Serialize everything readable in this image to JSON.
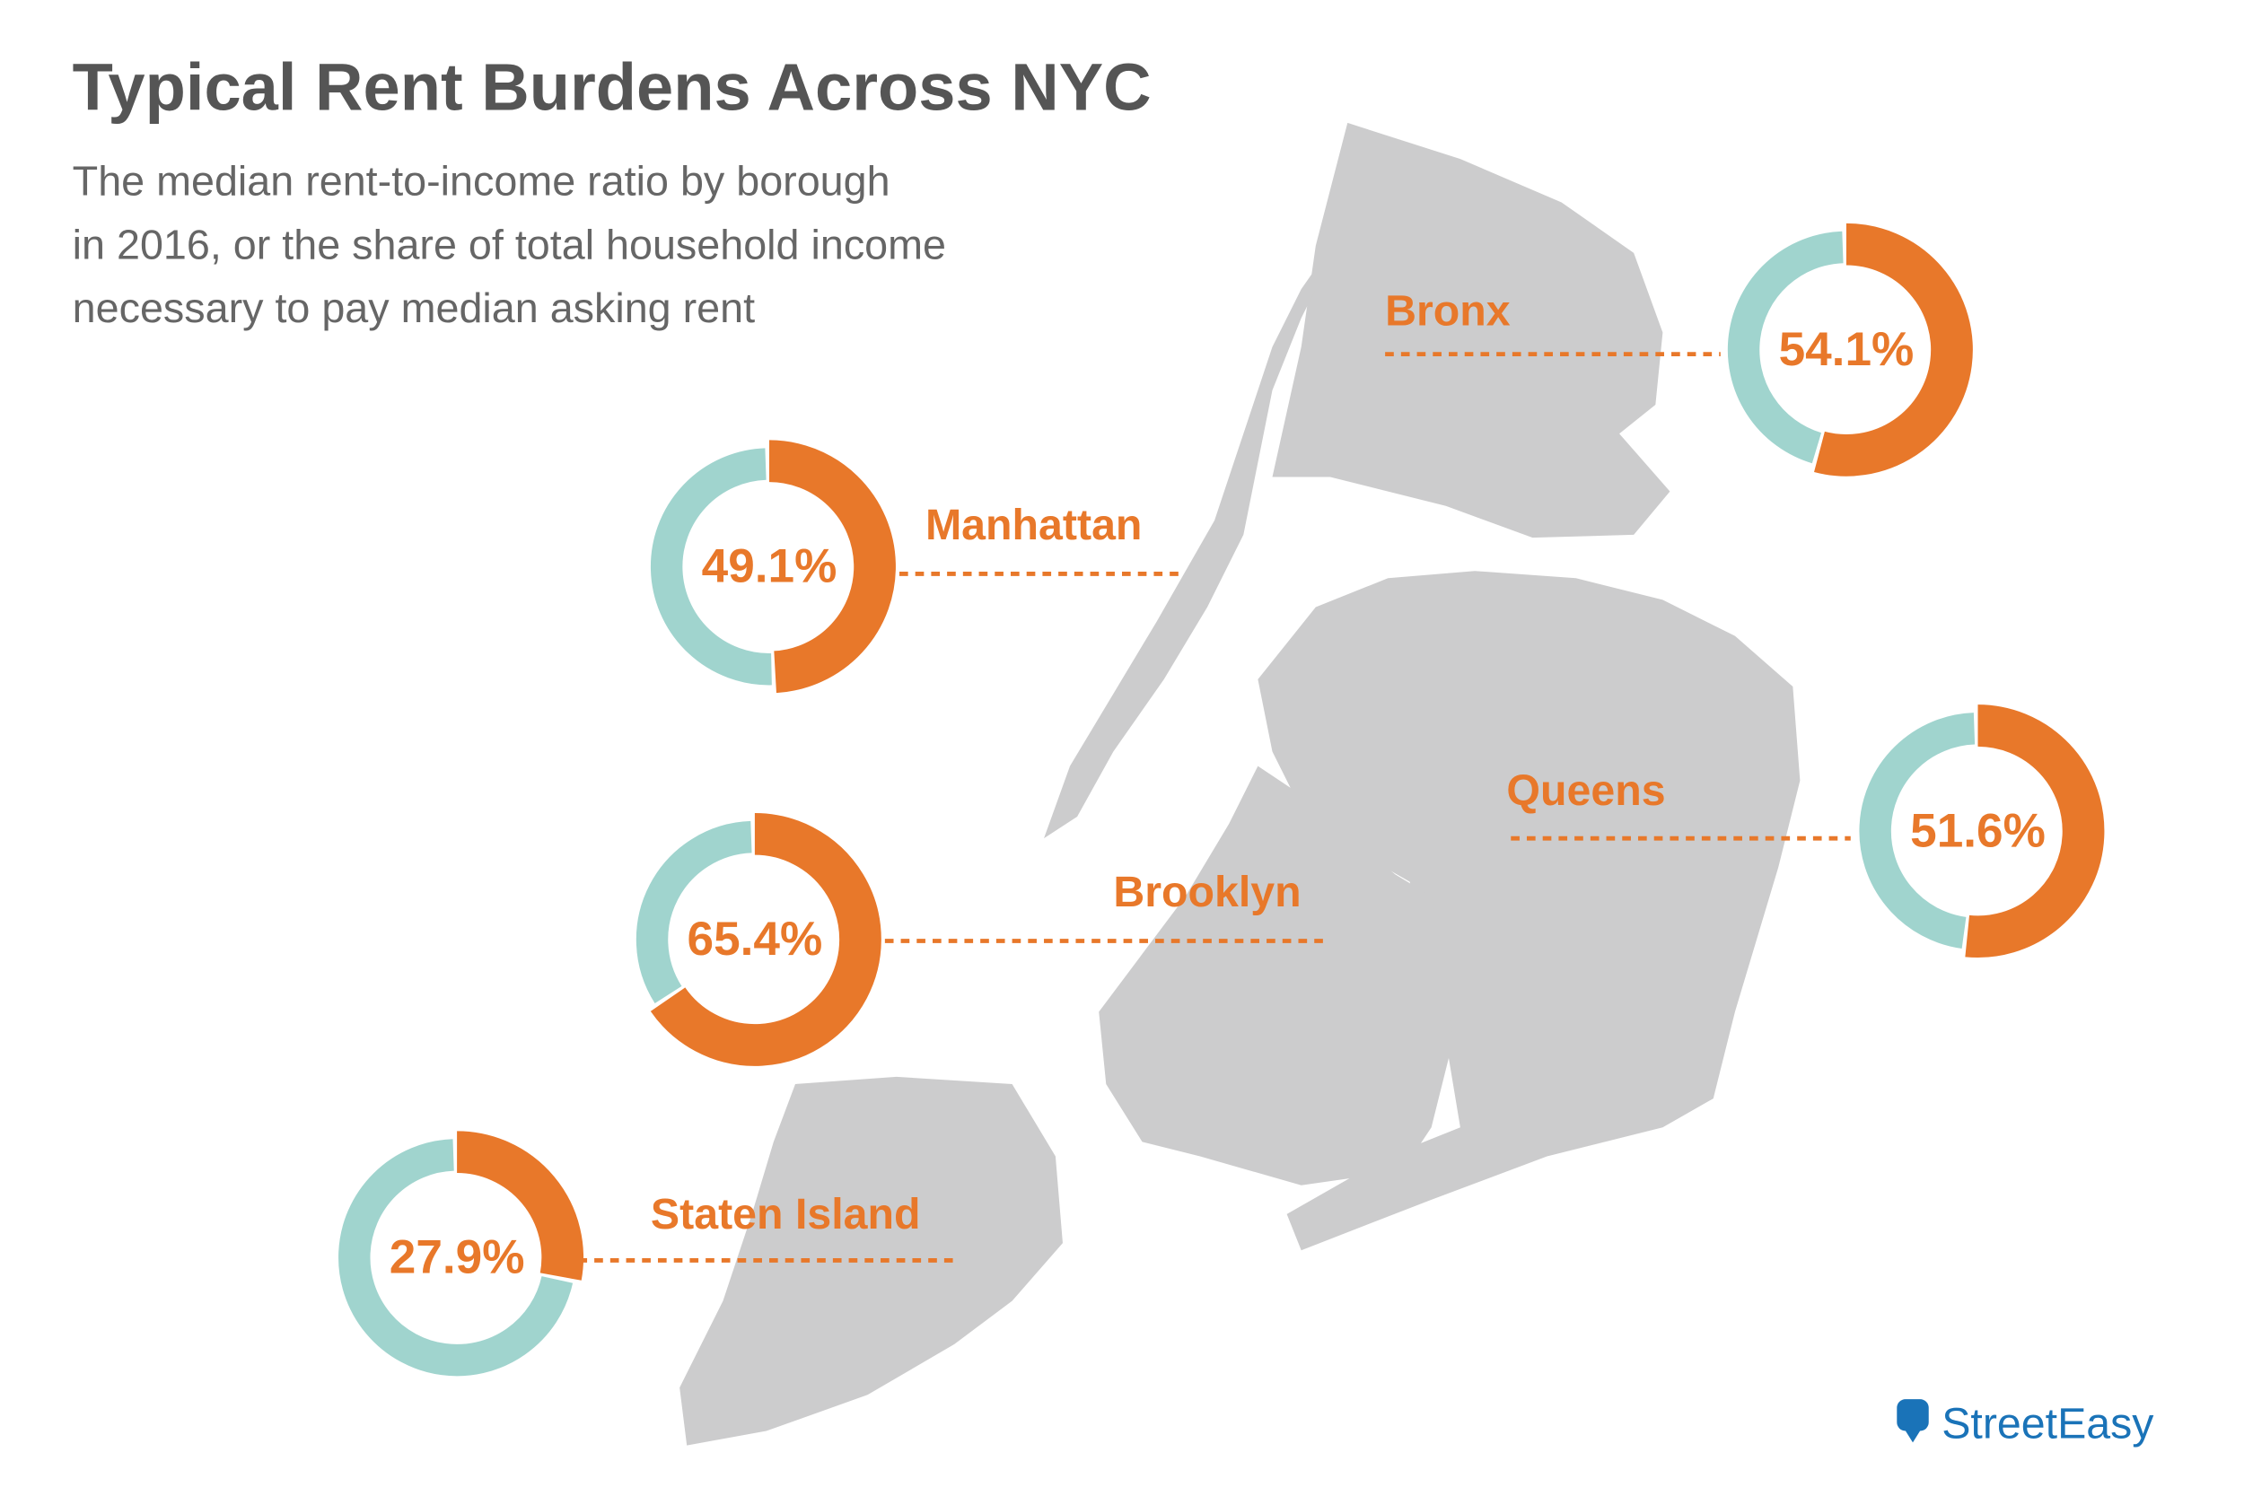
{
  "title": "Typical Rent Burdens Across NYC",
  "subtitle": [
    "The median rent-to-income ratio by borough",
    "in 2016, or the share of total household income",
    "necessary to pay median asking rent"
  ],
  "logo": "StreetEasy",
  "chart_data": [
    {
      "type": "donut",
      "label": "Bronx",
      "values": [
        54.1
      ],
      "value_labels": [
        "54.1%"
      ],
      "color": "#e8782a",
      "rest_color": "#a0d4ce"
    },
    {
      "type": "donut",
      "label": "Manhattan",
      "values": [
        49.1
      ],
      "value_labels": [
        "49.1%"
      ],
      "color": "#e8782a",
      "rest_color": "#a0d4ce"
    },
    {
      "type": "donut",
      "label": "Brooklyn",
      "values": [
        65.4
      ],
      "value_labels": [
        "65.4%"
      ],
      "color": "#e8782a",
      "rest_color": "#a0d4ce"
    },
    {
      "type": "donut",
      "label": "Queens",
      "values": [
        51.6
      ],
      "value_labels": [
        "51.6%"
      ],
      "color": "#e8782a",
      "rest_color": "#a0d4ce"
    },
    {
      "type": "donut",
      "label": "Staten Island",
      "values": [
        27.9
      ],
      "value_labels": [
        "27.9%"
      ],
      "color": "#e8782a",
      "rest_color": "#a0d4ce"
    }
  ]
}
